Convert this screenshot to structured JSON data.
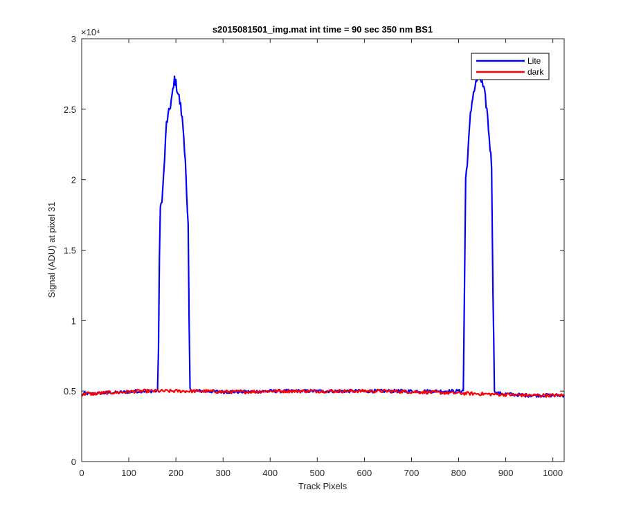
{
  "chart_data": {
    "type": "line",
    "title": "s2015081501_img.mat int time = 90 sec  350 nm BS1",
    "xlabel": "Track Pixels",
    "ylabel": "Signal (ADU) at pixel 31",
    "xlim": [
      0,
      1024
    ],
    "ylim": [
      0,
      30000
    ],
    "xticks": [
      0,
      100,
      200,
      300,
      400,
      500,
      600,
      700,
      800,
      900,
      1000
    ],
    "xtick_labels": [
      "0",
      "100",
      "200",
      "300",
      "400",
      "500",
      "600",
      "700",
      "800",
      "900",
      "1000"
    ],
    "yticks": [
      0,
      5000,
      10000,
      15000,
      20000,
      25000,
      30000
    ],
    "ytick_labels": [
      "0",
      "0.5",
      "1",
      "1.5",
      "2",
      "2.5",
      "3"
    ],
    "y_exponent_label": "×10⁴",
    "grid": false,
    "legend_position": "top-right",
    "series": [
      {
        "name": "Lite",
        "color": "#0000ff",
        "points": [
          [
            0,
            4750
          ],
          [
            10,
            4850
          ],
          [
            20,
            4800
          ],
          [
            40,
            4850
          ],
          [
            60,
            4900
          ],
          [
            80,
            4900
          ],
          [
            100,
            4950
          ],
          [
            120,
            5000
          ],
          [
            140,
            5000
          ],
          [
            155,
            5000
          ],
          [
            161,
            5000
          ],
          [
            163,
            8000
          ],
          [
            165,
            14500
          ],
          [
            167,
            17800
          ],
          [
            172,
            19200
          ],
          [
            176,
            21500
          ],
          [
            180,
            24000
          ],
          [
            185,
            24700
          ],
          [
            190,
            25600
          ],
          [
            195,
            26500
          ],
          [
            197,
            27200
          ],
          [
            200,
            26800
          ],
          [
            205,
            26100
          ],
          [
            210,
            25200
          ],
          [
            215,
            23800
          ],
          [
            220,
            21500
          ],
          [
            223,
            18500
          ],
          [
            226,
            16500
          ],
          [
            228,
            10000
          ],
          [
            230,
            5100
          ],
          [
            240,
            5000
          ],
          [
            260,
            5000
          ],
          [
            300,
            4950
          ],
          [
            350,
            4950
          ],
          [
            400,
            5000
          ],
          [
            450,
            5000
          ],
          [
            500,
            5000
          ],
          [
            550,
            5000
          ],
          [
            600,
            5000
          ],
          [
            650,
            5000
          ],
          [
            700,
            5000
          ],
          [
            750,
            5000
          ],
          [
            790,
            5000
          ],
          [
            805,
            5000
          ],
          [
            810,
            5050
          ],
          [
            812,
            11000
          ],
          [
            815,
            20000
          ],
          [
            820,
            22000
          ],
          [
            825,
            24500
          ],
          [
            830,
            26000
          ],
          [
            835,
            26600
          ],
          [
            840,
            27200
          ],
          [
            845,
            27300
          ],
          [
            850,
            26800
          ],
          [
            855,
            26100
          ],
          [
            860,
            25000
          ],
          [
            865,
            23000
          ],
          [
            870,
            21000
          ],
          [
            873,
            12000
          ],
          [
            876,
            5100
          ],
          [
            880,
            4850
          ],
          [
            900,
            4800
          ],
          [
            920,
            4750
          ],
          [
            940,
            4700
          ],
          [
            960,
            4700
          ],
          [
            980,
            4700
          ],
          [
            1000,
            4700
          ],
          [
            1024,
            4700
          ]
        ]
      },
      {
        "name": "dark",
        "color": "#ff0000",
        "points": [
          [
            0,
            4700
          ],
          [
            10,
            4850
          ],
          [
            20,
            4800
          ],
          [
            40,
            4850
          ],
          [
            60,
            4900
          ],
          [
            80,
            4900
          ],
          [
            100,
            4950
          ],
          [
            120,
            5000
          ],
          [
            140,
            5000
          ],
          [
            160,
            5000
          ],
          [
            180,
            5000
          ],
          [
            200,
            5000
          ],
          [
            220,
            5000
          ],
          [
            240,
            5000
          ],
          [
            260,
            5000
          ],
          [
            300,
            4950
          ],
          [
            350,
            4950
          ],
          [
            400,
            5000
          ],
          [
            450,
            5000
          ],
          [
            500,
            5000
          ],
          [
            550,
            5000
          ],
          [
            600,
            5000
          ],
          [
            650,
            5000
          ],
          [
            700,
            4950
          ],
          [
            750,
            4900
          ],
          [
            800,
            4850
          ],
          [
            850,
            4800
          ],
          [
            900,
            4750
          ],
          [
            950,
            4700
          ],
          [
            1000,
            4700
          ],
          [
            1024,
            4700
          ]
        ]
      }
    ]
  }
}
